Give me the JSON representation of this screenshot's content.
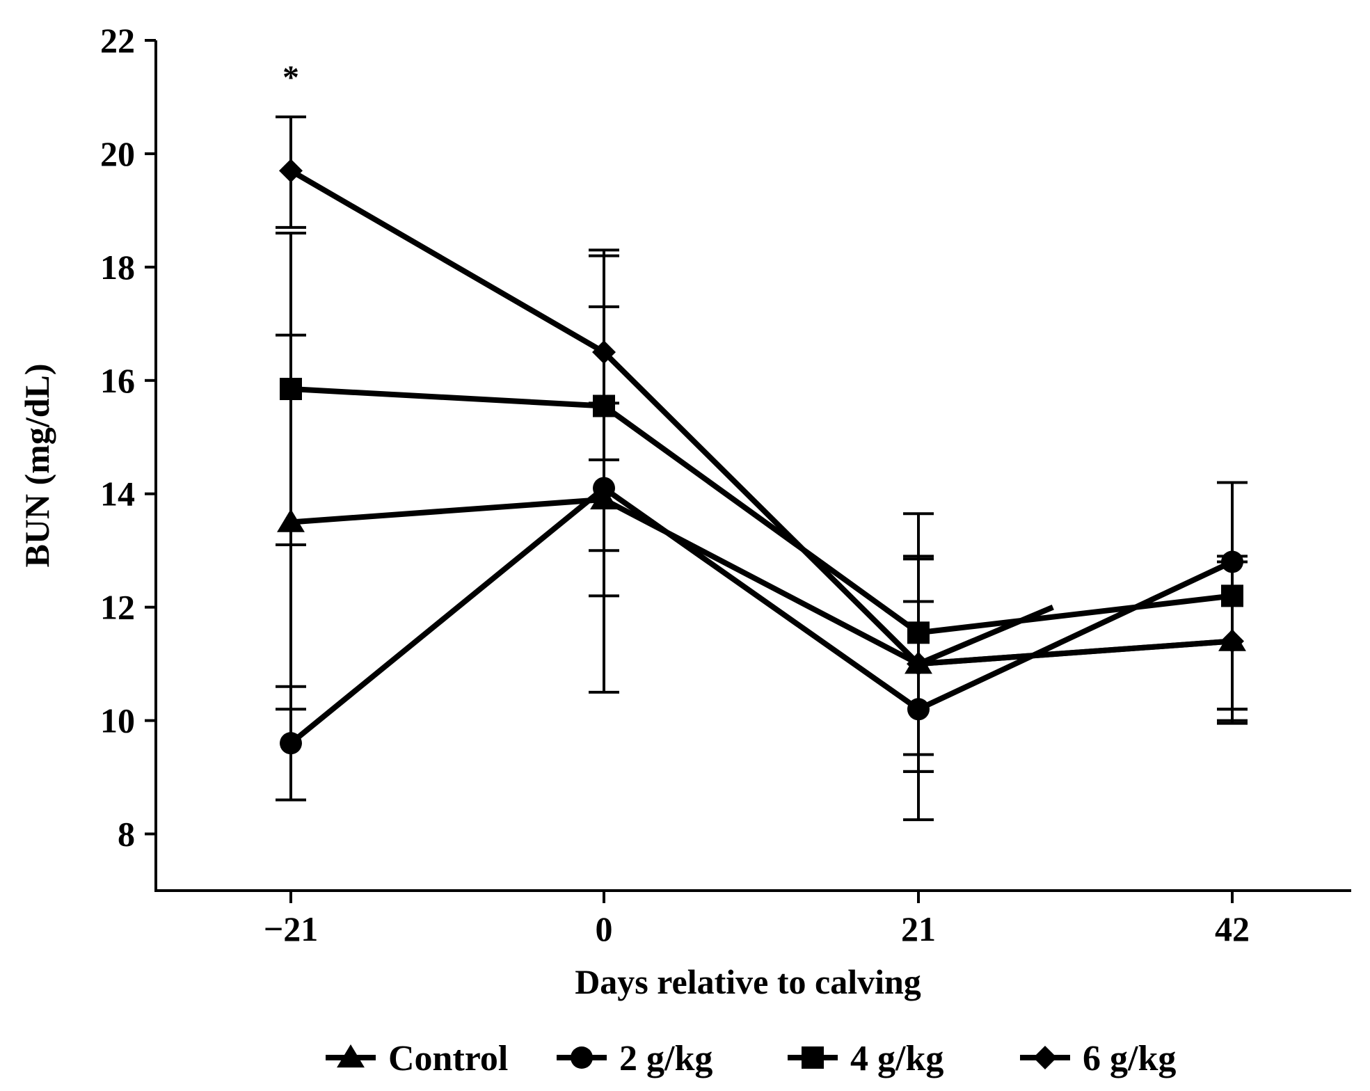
{
  "chart_data": {
    "type": "line",
    "title": "",
    "xlabel": "Days relative to calving",
    "ylabel": "BUN (mg/dL)",
    "x": [
      -21,
      0,
      21,
      42
    ],
    "x_tick_labels": [
      "−21",
      "0",
      "21",
      "42"
    ],
    "ylim": [
      7,
      22
    ],
    "yticks": [
      8,
      10,
      12,
      14,
      16,
      18,
      20,
      22
    ],
    "y_tick_labels": [
      "8",
      "10",
      "12",
      "14",
      "16",
      "18",
      "20",
      "22"
    ],
    "series": [
      {
        "name": "Control",
        "marker": "triangle",
        "values": [
          13.5,
          13.9,
          11.0,
          11.4
        ],
        "err_low": [
          10.2,
          12.2,
          9.1,
          10.0
        ],
        "err_high": [
          16.8,
          15.6,
          12.1,
          12.8
        ]
      },
      {
        "name": "2 g/kg",
        "marker": "circle",
        "values": [
          9.6,
          14.1,
          10.2,
          12.8
        ],
        "err_low": [
          8.6,
          13.0,
          8.25,
          10.2
        ],
        "err_high": [
          10.6,
          17.3,
          12.9,
          14.2
        ]
      },
      {
        "name": "4 g/kg",
        "marker": "square",
        "values": [
          15.85,
          15.55,
          11.55,
          12.2
        ],
        "err_low": [
          13.1,
          14.6,
          9.4,
          10.2
        ],
        "err_high": [
          18.6,
          18.2,
          12.85,
          14.2
        ]
      },
      {
        "name": "6 g/kg",
        "marker": "diamond",
        "values": [
          19.7,
          16.5,
          11.0,
          11.4
        ],
        "err_low": [
          18.7,
          10.5,
          9.1,
          9.95
        ],
        "err_high": [
          20.65,
          18.3,
          13.65,
          12.9
        ]
      }
    ],
    "stray_segment": {
      "from_x": 21,
      "from_y": 11.0,
      "to_x": 30,
      "to_y": 12.0
    },
    "annotations": [
      {
        "x": -21,
        "y": 21.3,
        "text": "*"
      }
    ],
    "legend_position": "bottom",
    "grid": false,
    "color": "#000000"
  }
}
